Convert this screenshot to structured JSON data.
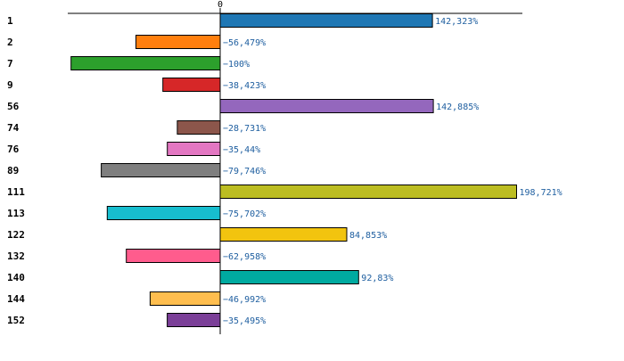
{
  "chart_data": {
    "type": "bar",
    "orientation": "horizontal",
    "title": "",
    "xlabel": "",
    "ylabel": "",
    "xlim": [
      -103,
      202
    ],
    "zero_tick": "0",
    "categories": [
      "1",
      "2",
      "7",
      "9",
      "56",
      "74",
      "76",
      "89",
      "111",
      "113",
      "122",
      "132",
      "140",
      "144",
      "152"
    ],
    "values": [
      142.323,
      -56.479,
      -100,
      -38.423,
      142.885,
      -28.731,
      -35.44,
      -79.746,
      198.721,
      -75.702,
      84.853,
      -62.958,
      92.83,
      -46.992,
      -35.495
    ],
    "value_labels": [
      "142,323%",
      "−56,479%",
      "−100%",
      "−38,423%",
      "142,885%",
      "−28,731%",
      "−35,44%",
      "−79,746%",
      "198,721%",
      "−75,702%",
      "84,853%",
      "−62,958%",
      "92,83%",
      "−46,992%",
      "−35,495%"
    ],
    "colors": [
      "#1f77b4",
      "#ff7f0e",
      "#2ca02c",
      "#d62728",
      "#9467bd",
      "#8c564b",
      "#e377c2",
      "#7f7f7f",
      "#bcbd22",
      "#17becf",
      "#f2c40f",
      "#ff5c8d",
      "#00aaa0",
      "#ffbe4f",
      "#7b3f98"
    ],
    "label_color": "#1f5fa0"
  }
}
